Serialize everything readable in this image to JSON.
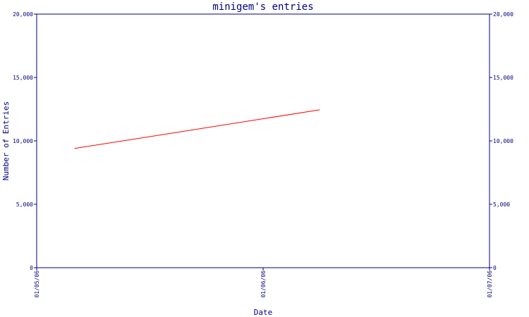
{
  "chart_data": {
    "type": "line",
    "title": "minigem's entries",
    "xlabel": "Date",
    "ylabel": "Number of Entries",
    "x_ticks": [
      "01/05/06",
      "01/06/06",
      "01/07/06"
    ],
    "y_ticks": [
      "0",
      "5,000",
      "10,000",
      "15,000",
      "20,000"
    ],
    "ylim": [
      0,
      20000
    ],
    "xlim": [
      "2006-01-05",
      "2006-01-07"
    ],
    "series": [
      {
        "color": "#ff0000",
        "x": [
          "2006-01-05T04:00",
          "2006-01-06T06:00"
        ],
        "y": [
          9400,
          12450
        ]
      }
    ],
    "grid": false,
    "legend": "none",
    "axis_color": "#000080"
  }
}
